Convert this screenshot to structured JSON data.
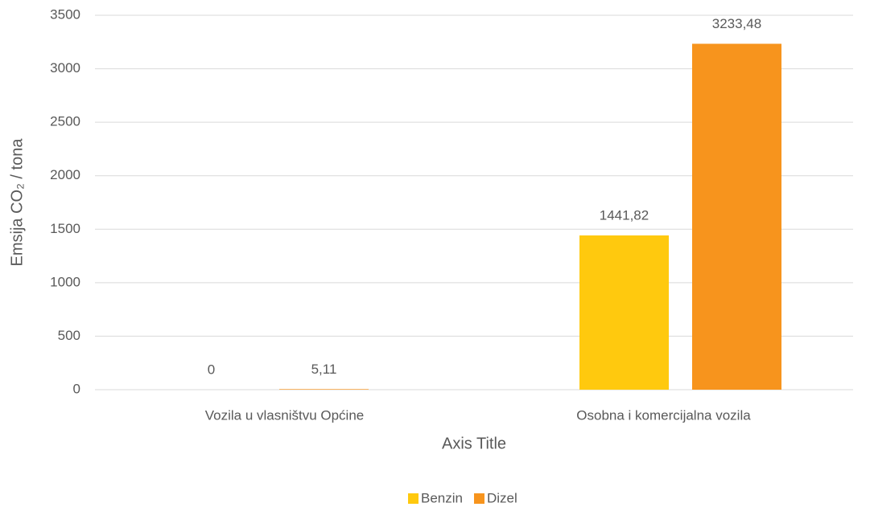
{
  "chart_data": {
    "type": "bar",
    "y_axis_label": "Emsija  CO₂ / tona",
    "x_axis_label": "Axis Title",
    "categories": [
      "Vozila u vlasništvu Općine",
      "Osobna i komercijalna vozila"
    ],
    "series": [
      {
        "name": "Benzin",
        "color": "#ffc90e",
        "values": [
          0,
          1441.82
        ],
        "value_labels": [
          "0",
          "1441,82"
        ]
      },
      {
        "name": "Dizel",
        "color": "#f7941d",
        "values": [
          5.11,
          3233.48
        ],
        "value_labels": [
          "5,11",
          "3233,48"
        ]
      }
    ],
    "ylim": [
      0,
      3500
    ],
    "yticks": [
      0,
      500,
      1000,
      1500,
      2000,
      2500,
      3000,
      3500
    ],
    "grid": true,
    "legend": "bottom"
  }
}
